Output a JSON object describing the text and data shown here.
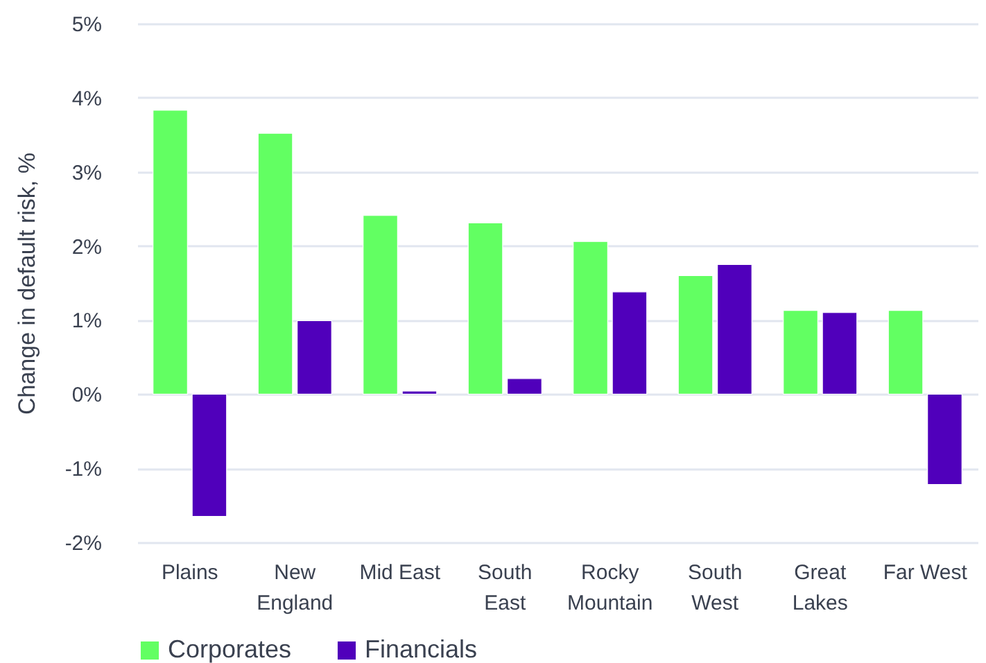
{
  "chart_data": {
    "type": "bar",
    "ylabel": "Change in default risk, %",
    "categories": [
      "Plains",
      "New England",
      "Mid East",
      "South East",
      "Rocky Mountain",
      "South West",
      "Great Lakes",
      "Far West"
    ],
    "series": [
      {
        "name": "Corporates",
        "color": "#62ff62",
        "values": [
          3.83,
          3.52,
          2.41,
          2.31,
          2.06,
          1.6,
          1.13,
          1.13
        ]
      },
      {
        "name": "Financials",
        "color": "#5000bb",
        "values": [
          -1.65,
          0.99,
          0.04,
          0.21,
          1.38,
          1.75,
          1.1,
          -1.22
        ]
      }
    ],
    "ylim": [
      -2,
      5
    ],
    "yticks": [
      {
        "value": -2,
        "label": "-2%"
      },
      {
        "value": -1,
        "label": "-1%"
      },
      {
        "value": 0,
        "label": "0%"
      },
      {
        "value": 1,
        "label": "1%"
      },
      {
        "value": 2,
        "label": "2%"
      },
      {
        "value": 3,
        "label": "3%"
      },
      {
        "value": 4,
        "label": "4%"
      },
      {
        "value": 5,
        "label": "5%"
      }
    ],
    "grid": "y",
    "legend": "bottom"
  }
}
